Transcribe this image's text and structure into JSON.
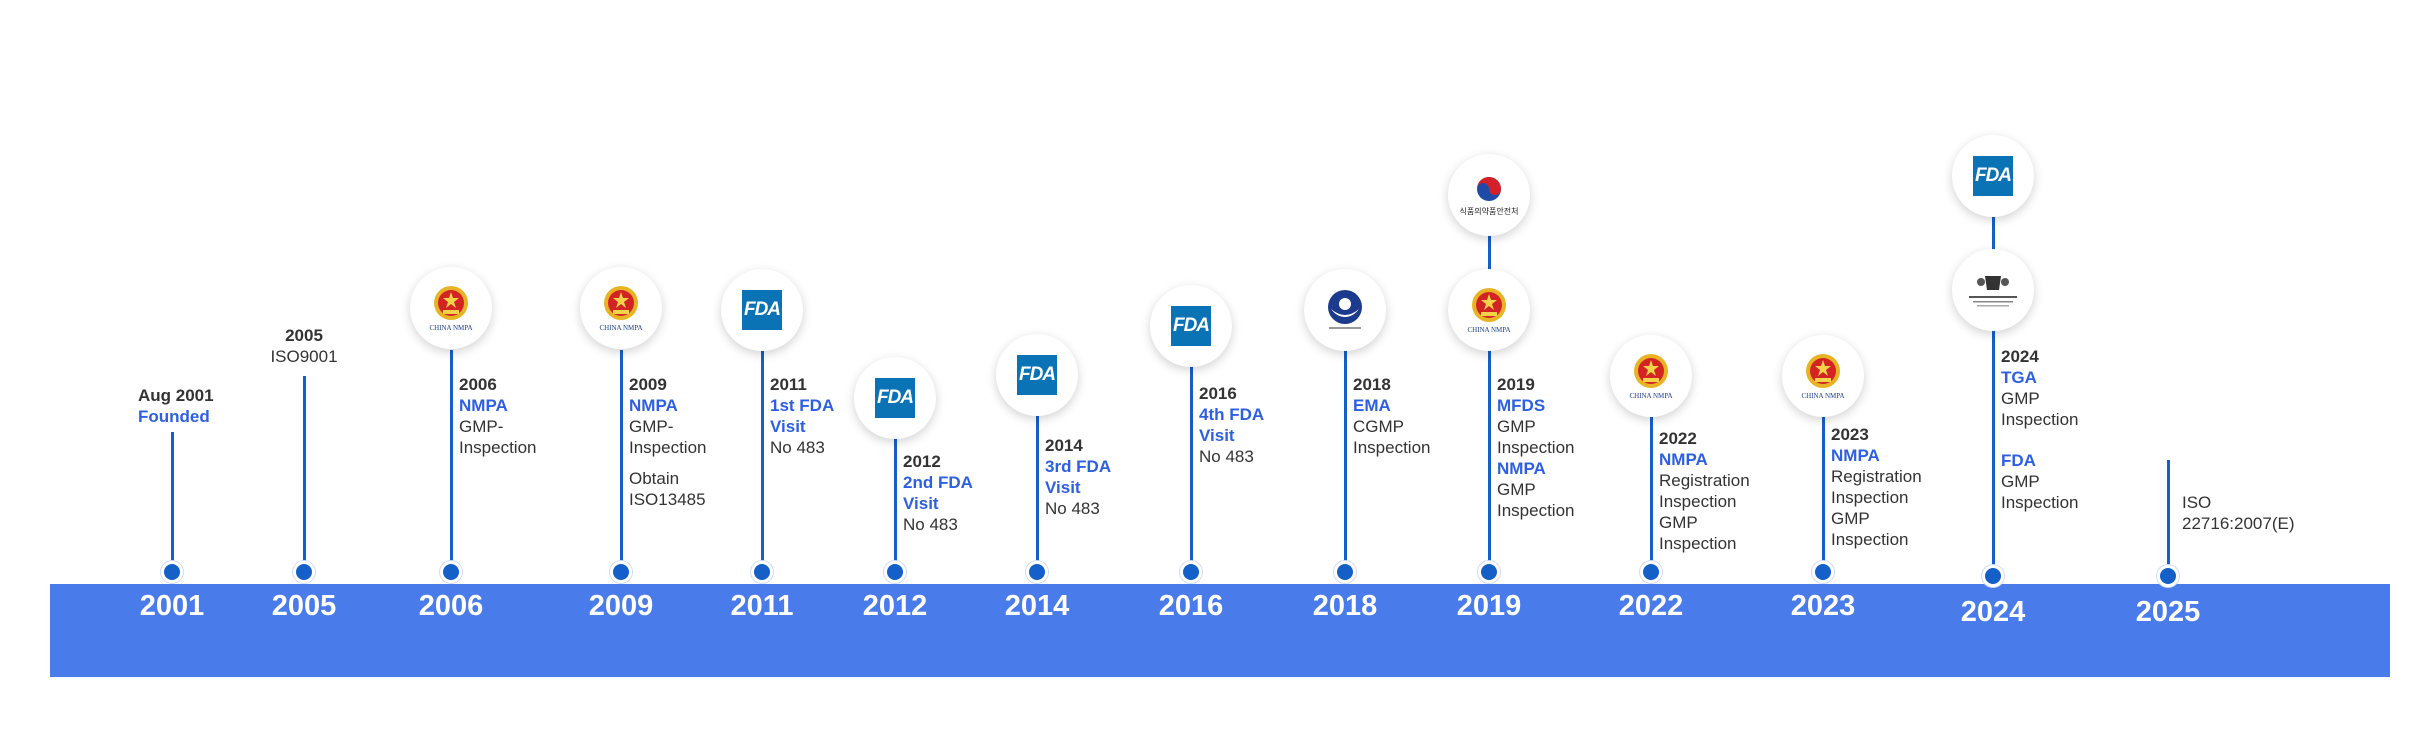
{
  "timeline": {
    "band_color": "#4a7bea",
    "events": [
      {
        "id": "e2001",
        "year": "2001",
        "lines": [
          {
            "text": "Aug 2001",
            "style": "h"
          },
          {
            "text": "Founded",
            "style": "b"
          }
        ],
        "logos": []
      },
      {
        "id": "e2005",
        "year": "2005",
        "lines": [
          {
            "text": "2005",
            "style": "h"
          },
          {
            "text": "ISO9001",
            "style": "t"
          }
        ],
        "logos": []
      },
      {
        "id": "e2006",
        "year": "2006",
        "lines": [
          {
            "text": "2006",
            "style": "h"
          },
          {
            "text": "NMPA",
            "style": "b"
          },
          {
            "text": "GMP-",
            "style": "t"
          },
          {
            "text": "Inspection",
            "style": "t"
          }
        ],
        "logos": [
          {
            "type": "nmpa",
            "icon": "china-nmpa-emblem-icon",
            "caption": "CHINA NMPA"
          }
        ]
      },
      {
        "id": "e2009",
        "year": "2009",
        "lines": [
          {
            "text": "2009",
            "style": "h"
          },
          {
            "text": "NMPA",
            "style": "b"
          },
          {
            "text": "GMP-",
            "style": "t"
          },
          {
            "text": "Inspection",
            "style": "t"
          },
          {
            "text": "",
            "style": "gap"
          },
          {
            "text": "Obtain",
            "style": "t"
          },
          {
            "text": "ISO13485",
            "style": "t"
          }
        ],
        "logos": [
          {
            "type": "nmpa",
            "icon": "china-nmpa-emblem-icon",
            "caption": "CHINA NMPA"
          }
        ]
      },
      {
        "id": "e2011",
        "year": "2011",
        "lines": [
          {
            "text": "2011",
            "style": "h"
          },
          {
            "text": "1st FDA",
            "style": "b"
          },
          {
            "text": "Visit",
            "style": "b"
          },
          {
            "text": "No 483",
            "style": "t"
          }
        ],
        "logos": [
          {
            "type": "fda",
            "icon": "fda-logo-icon",
            "caption": "FDA"
          }
        ]
      },
      {
        "id": "e2012",
        "year": "2012",
        "lines": [
          {
            "text": "2012",
            "style": "h"
          },
          {
            "text": "2nd FDA",
            "style": "b"
          },
          {
            "text": "Visit",
            "style": "b"
          },
          {
            "text": "No 483",
            "style": "t"
          }
        ],
        "logos": [
          {
            "type": "fda",
            "icon": "fda-logo-icon",
            "caption": "FDA"
          }
        ]
      },
      {
        "id": "e2014",
        "year": "2014",
        "lines": [
          {
            "text": "2014",
            "style": "h"
          },
          {
            "text": "3rd FDA",
            "style": "b"
          },
          {
            "text": "Visit",
            "style": "b"
          },
          {
            "text": "No 483",
            "style": "t"
          }
        ],
        "logos": [
          {
            "type": "fda",
            "icon": "fda-logo-icon",
            "caption": "FDA"
          }
        ]
      },
      {
        "id": "e2016",
        "year": "2016",
        "lines": [
          {
            "text": "2016",
            "style": "h"
          },
          {
            "text": "4th FDA",
            "style": "b"
          },
          {
            "text": "Visit",
            "style": "b"
          },
          {
            "text": "No 483",
            "style": "t"
          }
        ],
        "logos": [
          {
            "type": "fda",
            "icon": "fda-logo-icon",
            "caption": "FDA"
          }
        ]
      },
      {
        "id": "e2018",
        "year": "2018",
        "lines": [
          {
            "text": "2018",
            "style": "h"
          },
          {
            "text": "EMA",
            "style": "b"
          },
          {
            "text": "CGMP",
            "style": "t"
          },
          {
            "text": "Inspection",
            "style": "t"
          }
        ],
        "logos": [
          {
            "type": "ema",
            "icon": "ema-logo-icon",
            "caption": ""
          }
        ]
      },
      {
        "id": "e2019",
        "year": "2019",
        "lines": [
          {
            "text": "2019",
            "style": "h"
          },
          {
            "text": "MFDS",
            "style": "b"
          },
          {
            "text": "GMP",
            "style": "t"
          },
          {
            "text": "Inspection",
            "style": "t"
          },
          {
            "text": "NMPA",
            "style": "b"
          },
          {
            "text": "GMP",
            "style": "t"
          },
          {
            "text": "Inspection",
            "style": "t"
          }
        ],
        "logos": [
          {
            "type": "nmpa",
            "icon": "china-nmpa-emblem-icon",
            "caption": "CHINA NMPA"
          },
          {
            "type": "mfds",
            "icon": "mfds-logo-icon",
            "caption": "식품의약품안전처"
          }
        ]
      },
      {
        "id": "e2022",
        "year": "2022",
        "lines": [
          {
            "text": "2022",
            "style": "h"
          },
          {
            "text": "NMPA",
            "style": "b"
          },
          {
            "text": "Registration",
            "style": "t"
          },
          {
            "text": "Inspection",
            "style": "t"
          },
          {
            "text": "GMP",
            "style": "t"
          },
          {
            "text": "Inspection",
            "style": "t"
          }
        ],
        "logos": [
          {
            "type": "nmpa",
            "icon": "china-nmpa-emblem-icon",
            "caption": "CHINA NMPA"
          }
        ]
      },
      {
        "id": "e2023",
        "year": "2023",
        "lines": [
          {
            "text": "2023",
            "style": "h"
          },
          {
            "text": "NMPA",
            "style": "b"
          },
          {
            "text": "Registration",
            "style": "t"
          },
          {
            "text": "Inspection",
            "style": "t"
          },
          {
            "text": "GMP",
            "style": "t"
          },
          {
            "text": "Inspection",
            "style": "t"
          }
        ],
        "logos": [
          {
            "type": "nmpa",
            "icon": "china-nmpa-emblem-icon",
            "caption": "CHINA NMPA"
          }
        ]
      },
      {
        "id": "e2024",
        "year": "2024",
        "lines": [
          {
            "text": "2024",
            "style": "h"
          },
          {
            "text": "TGA",
            "style": "b"
          },
          {
            "text": "GMP",
            "style": "t"
          },
          {
            "text": "Inspection",
            "style": "t"
          },
          {
            "text": "",
            "style": "gap"
          },
          {
            "text": "",
            "style": "gap"
          },
          {
            "text": "FDA",
            "style": "b"
          },
          {
            "text": "GMP",
            "style": "t"
          },
          {
            "text": "Inspection",
            "style": "t"
          }
        ],
        "logos": [
          {
            "type": "tga",
            "icon": "tga-crest-icon",
            "caption": ""
          },
          {
            "type": "fda",
            "icon": "fda-logo-icon",
            "caption": "FDA"
          }
        ]
      },
      {
        "id": "e2025",
        "year": "2025",
        "lines": [
          {
            "text": "ISO",
            "style": "t"
          },
          {
            "text": "22716:2007(E)",
            "style": "t"
          }
        ],
        "logos": []
      }
    ]
  }
}
